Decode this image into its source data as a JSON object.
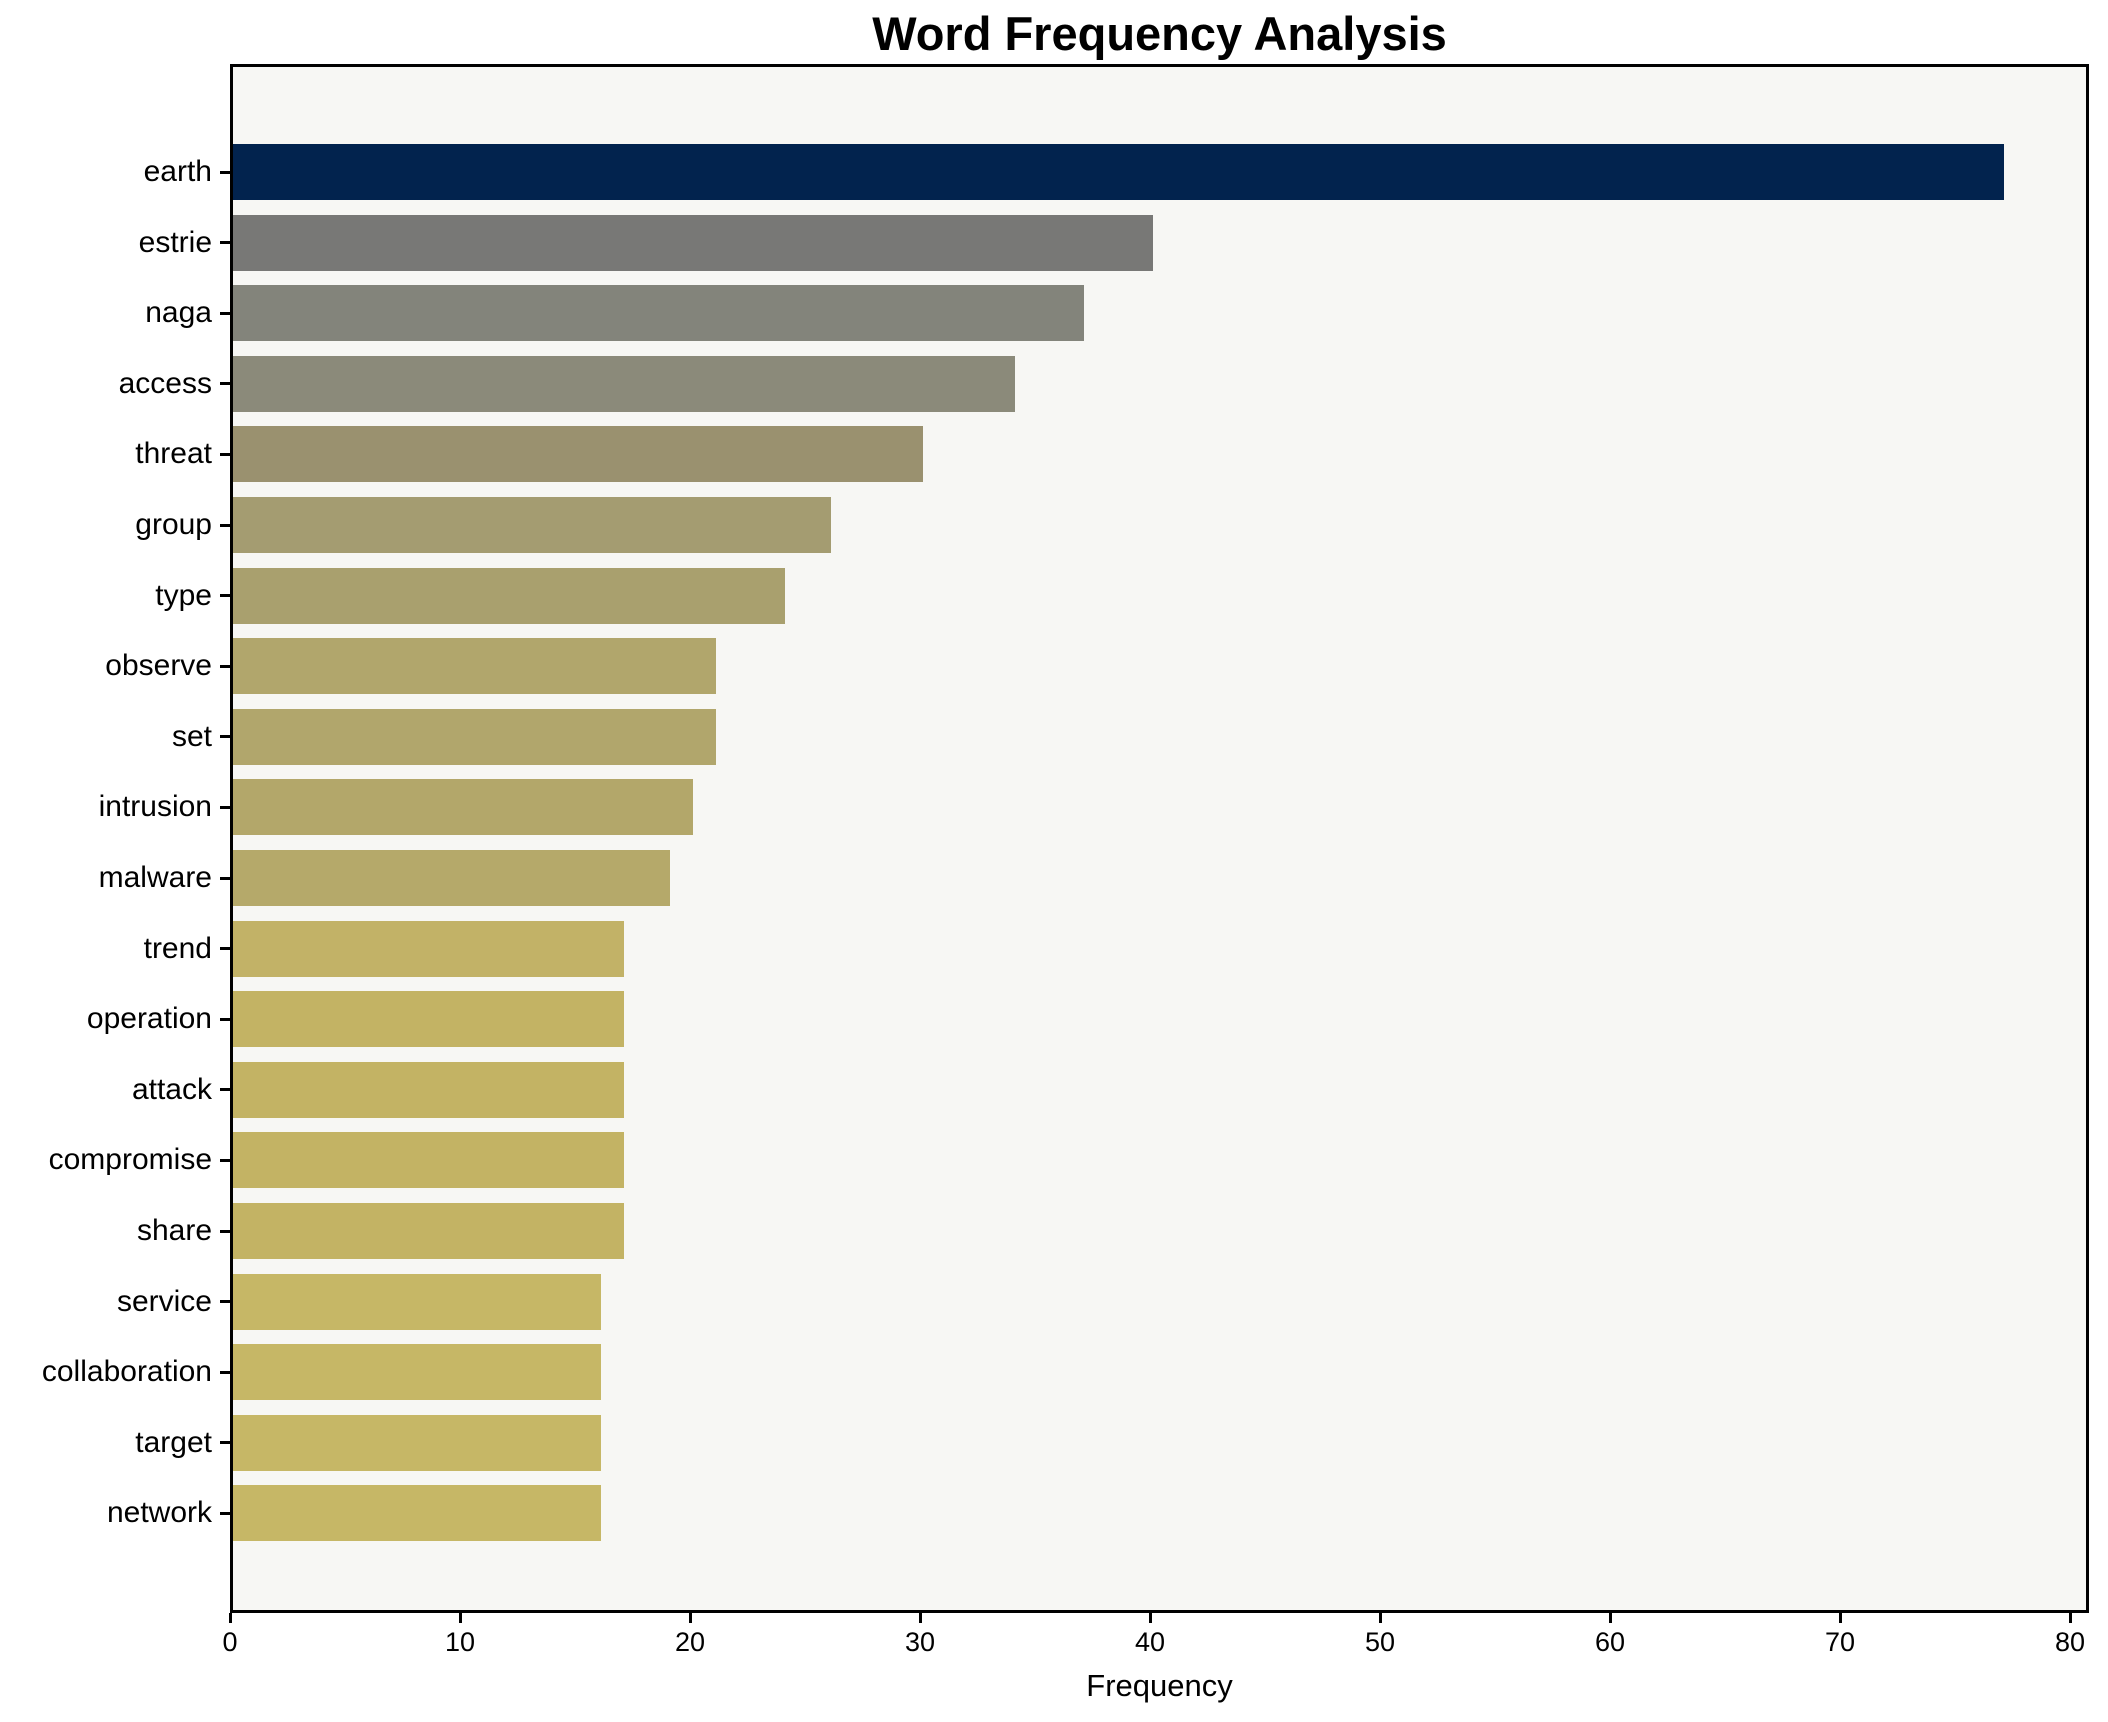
{
  "chart_data": {
    "type": "bar",
    "orientation": "horizontal",
    "title": "Word Frequency Analysis",
    "xlabel": "Frequency",
    "ylabel": "",
    "xlim": [
      0,
      80.8
    ],
    "xticks": [
      0,
      10,
      20,
      30,
      40,
      50,
      60,
      70,
      80
    ],
    "grid": false,
    "legend": false,
    "categories": [
      "earth",
      "estrie",
      "naga",
      "access",
      "threat",
      "group",
      "type",
      "observe",
      "set",
      "intrusion",
      "malware",
      "trend",
      "operation",
      "attack",
      "compromise",
      "share",
      "service",
      "collaboration",
      "target",
      "network"
    ],
    "values": [
      77,
      40,
      37,
      34,
      30,
      26,
      24,
      21,
      21,
      20,
      19,
      17,
      17,
      17,
      17,
      17,
      16,
      16,
      16,
      16
    ],
    "bar_colors": [
      "#02234e",
      "#787876",
      "#83847b",
      "#8b8a7a",
      "#9a916f",
      "#a49c71",
      "#a9a06e",
      "#b1a66c",
      "#b1a66c",
      "#b3a76a",
      "#b5a96a",
      "#c2b267",
      "#c3b364",
      "#c3b364",
      "#c3b364",
      "#c3b364",
      "#c6b766",
      "#c6b766",
      "#c6b766",
      "#c6b766"
    ]
  },
  "style": {
    "figure_bg": "#ffffff",
    "plot_bg": "#f7f7f4",
    "spine_color": "#000000",
    "text_color": "#000000"
  }
}
